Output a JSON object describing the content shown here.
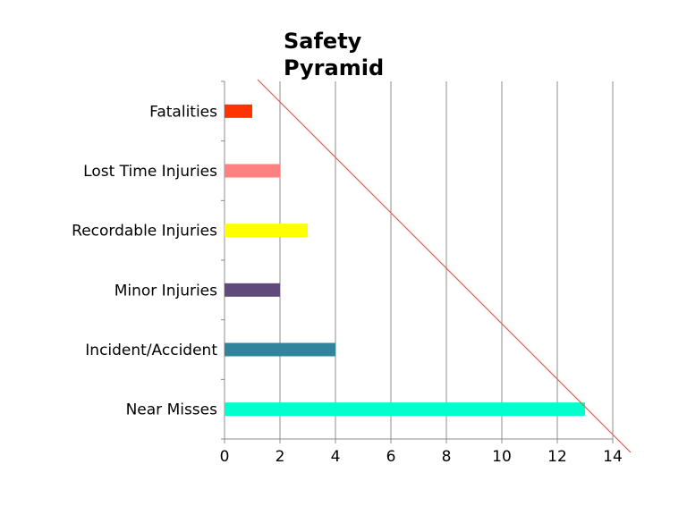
{
  "chart_data": {
    "type": "bar",
    "orientation": "horizontal",
    "title": [
      "Safety",
      "Pyramid"
    ],
    "categories": [
      "Fatalities",
      "Lost Time Injuries",
      "Recordable Injuries",
      "Minor Injuries",
      "Incident/Accident",
      "Near Misses"
    ],
    "values": [
      1,
      2,
      3,
      2,
      4,
      13
    ],
    "colors": [
      "#ff3300",
      "#ff8080",
      "#ffff00",
      "#604a7b",
      "#31849b",
      "#00ffcc"
    ],
    "xlim": [
      0,
      14
    ],
    "xticks": [
      0,
      2,
      4,
      6,
      8,
      10,
      12,
      14
    ],
    "grid": "vertical",
    "trend_line_color": "#e06050"
  }
}
